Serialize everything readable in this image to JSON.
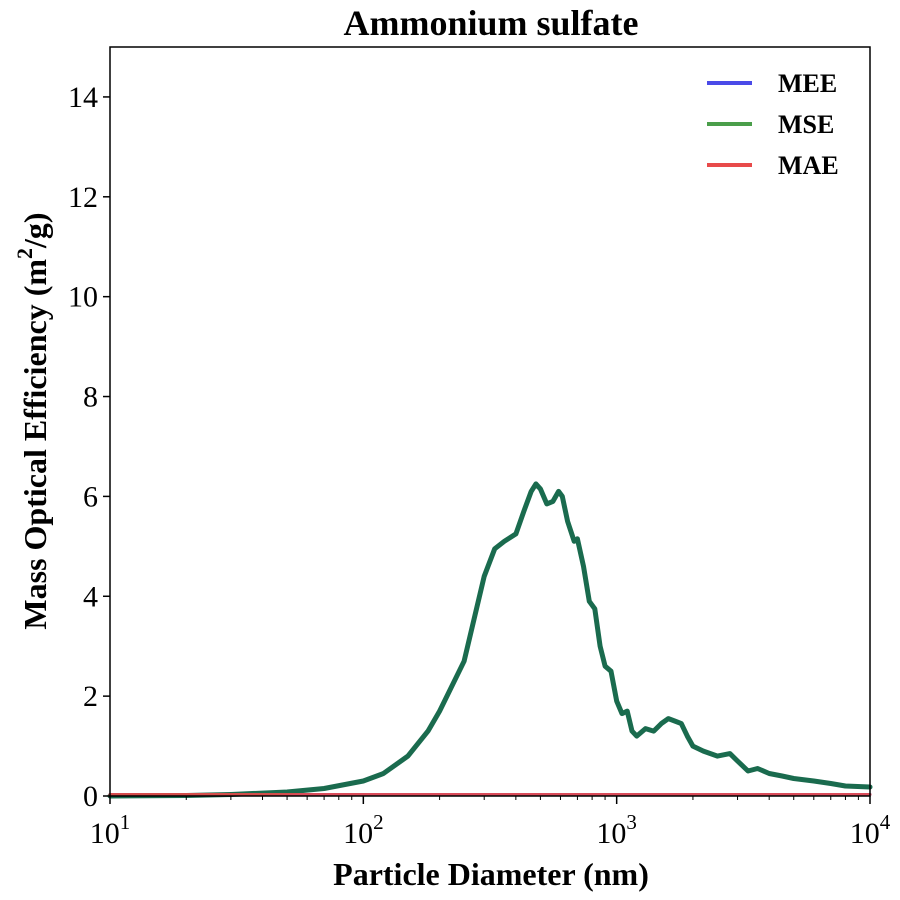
{
  "chart_data": {
    "type": "line",
    "title": "Ammonium sulfate",
    "xlabel": "Particle Diameter (nm)",
    "ylabel": "Mass Optical Efficiency (m^2/g)",
    "ylabel_parts": {
      "prefix": "Mass Optical Efficiency (m",
      "superscript": "2",
      "suffix": "/g)"
    },
    "xscale": "log",
    "xlim": [
      10,
      10000
    ],
    "ylim": [
      0,
      15
    ],
    "grid": false,
    "legend_position": "top-right",
    "x_ticks": [
      {
        "value": 10,
        "base": "10",
        "exp": "1"
      },
      {
        "value": 100,
        "base": "10",
        "exp": "2"
      },
      {
        "value": 1000,
        "base": "10",
        "exp": "3"
      },
      {
        "value": 10000,
        "base": "10",
        "exp": "4"
      }
    ],
    "y_ticks": [
      0,
      2,
      4,
      6,
      8,
      10,
      12,
      14
    ],
    "series": [
      {
        "name": "MEE",
        "color": "#4a4ae8",
        "x": [
          10,
          10000
        ],
        "y": [
          0.03,
          0.03
        ]
      },
      {
        "name": "MSE",
        "color": "#4a9e4a",
        "x": [
          10,
          20,
          30,
          50,
          70,
          100,
          120,
          150,
          180,
          200,
          250,
          300,
          330,
          360,
          400,
          430,
          460,
          480,
          500,
          530,
          560,
          590,
          610,
          640,
          680,
          700,
          740,
          780,
          820,
          860,
          900,
          950,
          1000,
          1050,
          1100,
          1150,
          1200,
          1300,
          1400,
          1500,
          1600,
          1700,
          1800,
          1900,
          2000,
          2200,
          2500,
          2800,
          3000,
          3300,
          3600,
          4000,
          4500,
          5000,
          6000,
          7000,
          8000,
          10000
        ],
        "y": [
          0.0,
          0.01,
          0.03,
          0.08,
          0.15,
          0.3,
          0.45,
          0.8,
          1.3,
          1.7,
          2.7,
          4.4,
          4.95,
          5.1,
          5.25,
          5.7,
          6.1,
          6.25,
          6.15,
          5.85,
          5.9,
          6.1,
          6.0,
          5.5,
          5.1,
          5.15,
          4.6,
          3.9,
          3.75,
          3.0,
          2.6,
          2.5,
          1.9,
          1.65,
          1.7,
          1.3,
          1.2,
          1.35,
          1.3,
          1.45,
          1.55,
          1.5,
          1.45,
          1.2,
          1.0,
          0.9,
          0.8,
          0.85,
          0.7,
          0.5,
          0.55,
          0.45,
          0.4,
          0.35,
          0.3,
          0.25,
          0.2,
          0.18
        ]
      },
      {
        "name": "MAE",
        "color": "#e84a4a",
        "x": [
          10,
          10000
        ],
        "y": [
          0.03,
          0.03
        ]
      }
    ],
    "overlap_color": "#1a6b4e"
  }
}
